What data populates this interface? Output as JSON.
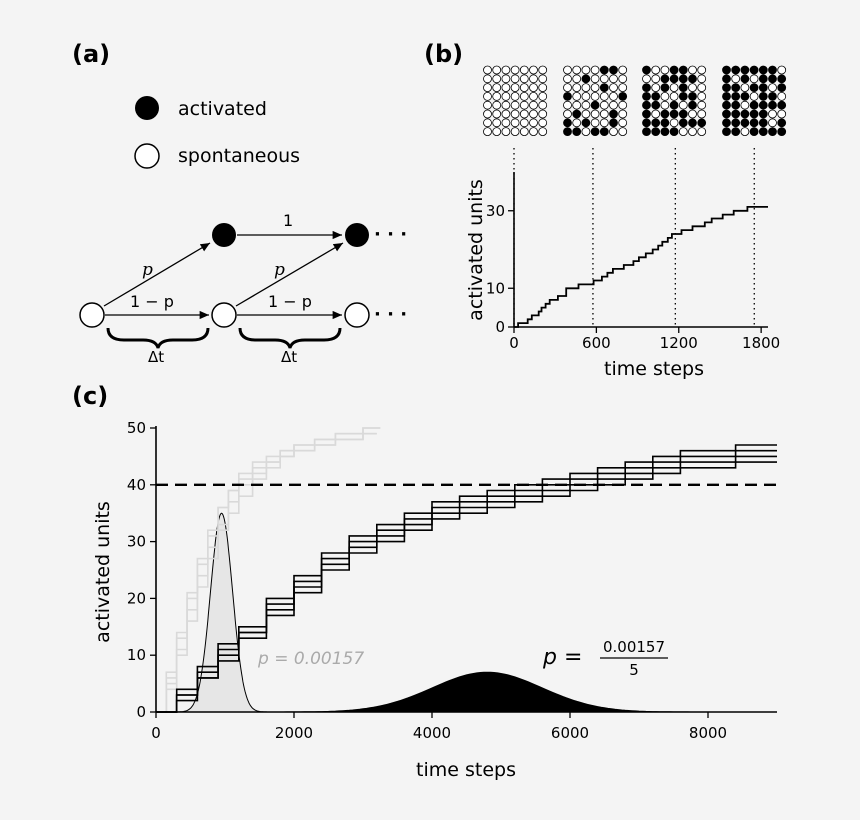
{
  "figure": {
    "panel_labels": [
      "(a)",
      "(b)",
      "(c)"
    ]
  },
  "panel_a": {
    "legend": {
      "activated": "activated",
      "spontaneous": "spontaneous"
    },
    "labels": {
      "p1": "p",
      "p2": "p",
      "one_minus_p1": "1 − p",
      "one_minus_p2": "1 − p",
      "one": "1",
      "dt1": "Δt",
      "dt2": "Δt",
      "dots1": "· · ·",
      "dots2": "· · ·"
    }
  },
  "chart_data": [
    {
      "id": "b",
      "type": "line",
      "xlabel": "time steps",
      "ylabel": "activated units",
      "xlim": [
        0,
        1850
      ],
      "ylim": [
        0,
        40
      ],
      "xticks": [
        0,
        600,
        1200,
        1800
      ],
      "yticks": [
        0,
        10,
        30
      ],
      "snapshot_times": [
        0,
        575,
        1175,
        1750
      ],
      "snapshot_grids": [
        [
          "0000000",
          "0000000",
          "0000000",
          "0000000",
          "0000000",
          "0000000",
          "0000000",
          "0000000"
        ],
        [
          "0000110",
          "0010000",
          "0000100",
          "1000001",
          "0001000",
          "0100010",
          "1010010",
          "1101100"
        ],
        [
          "1001100",
          "0011110",
          "1010100",
          "1100110",
          "1101010",
          "1011100",
          "1110111",
          "1111000"
        ],
        [
          "1111110",
          "1010111",
          "1101101",
          "1110110",
          "1101111",
          "1111100",
          "1111101",
          "1101111"
        ]
      ],
      "series": [
        {
          "name": "run",
          "x": [
            0,
            30,
            60,
            100,
            130,
            160,
            180,
            200,
            230,
            260,
            290,
            320,
            350,
            380,
            430,
            470,
            520,
            540,
            580,
            600,
            640,
            680,
            720,
            760,
            800,
            830,
            870,
            910,
            960,
            1010,
            1050,
            1080,
            1120,
            1150,
            1180,
            1220,
            1260,
            1300,
            1350,
            1390,
            1440,
            1480,
            1520,
            1560,
            1600,
            1640,
            1700,
            1850
          ],
          "y": [
            0,
            1,
            1,
            2,
            3,
            3,
            4,
            5,
            6,
            7,
            7,
            8,
            8,
            10,
            10,
            11,
            11,
            11,
            12,
            12,
            13,
            14,
            15,
            15,
            16,
            16,
            17,
            18,
            19,
            20,
            21,
            22,
            23,
            24,
            24,
            25,
            25,
            26,
            26,
            27,
            28,
            28,
            29,
            29,
            30,
            30,
            31,
            31
          ]
        }
      ]
    },
    {
      "id": "c",
      "type": "line",
      "xlabel": "time steps",
      "ylabel": "activated units",
      "xlim": [
        0,
        9000
      ],
      "ylim": [
        0,
        50
      ],
      "xticks": [
        0,
        2000,
        4000,
        6000,
        8000
      ],
      "yticks": [
        0,
        10,
        20,
        30,
        40,
        50
      ],
      "threshold": 40,
      "annotations": {
        "p_fast": "p = 0.00157",
        "p_slow_lhs": "p =",
        "p_slow_num": "0.00157",
        "p_slow_den": "5"
      },
      "distributions": [
        {
          "name": "fast",
          "type": "gaussian",
          "mean": 950,
          "sd": 160,
          "peak": 35,
          "fill": "#e6e6e6"
        },
        {
          "name": "slow",
          "type": "gaussian",
          "mean": 4800,
          "sd": 800,
          "peak": 7,
          "fill": "#000000"
        }
      ],
      "series": [
        {
          "name": "fast-1",
          "color": "#d9d9d9",
          "x": [
            0,
            150,
            300,
            450,
            600,
            750,
            900,
            1050,
            1200,
            1400,
            1600,
            1800,
            2000,
            2300,
            2600,
            3000,
            3200
          ],
          "y": [
            0,
            6,
            13,
            20,
            26,
            31,
            36,
            39,
            41,
            43,
            44,
            45,
            46,
            47,
            48,
            49,
            49
          ]
        },
        {
          "name": "fast-2",
          "color": "#d9d9d9",
          "x": [
            0,
            150,
            300,
            450,
            600,
            750,
            900,
            1050,
            1200,
            1400,
            1600,
            1800,
            2000,
            2300,
            2600,
            3000,
            3250
          ],
          "y": [
            0,
            5,
            11,
            18,
            24,
            29,
            33,
            37,
            40,
            42,
            44,
            46,
            47,
            48,
            49,
            50,
            50
          ]
        },
        {
          "name": "fast-3",
          "color": "#d9d9d9",
          "x": [
            0,
            150,
            300,
            450,
            600,
            750,
            900,
            1050,
            1200,
            1400,
            1600,
            1800,
            2000,
            2300,
            2600,
            3000,
            3200
          ],
          "y": [
            0,
            4,
            10,
            16,
            22,
            27,
            32,
            35,
            38,
            41,
            43,
            45,
            46,
            47,
            48,
            49,
            49
          ]
        },
        {
          "name": "fast-4",
          "color": "#d9d9d9",
          "x": [
            0,
            150,
            300,
            450,
            600,
            750,
            900,
            1050,
            1200,
            1400,
            1600,
            1800,
            2000,
            2300,
            2600,
            3000,
            3250
          ],
          "y": [
            0,
            7,
            14,
            21,
            27,
            32,
            36,
            39,
            42,
            44,
            45,
            46,
            47,
            48,
            49,
            50,
            50
          ]
        },
        {
          "name": "slow-1",
          "color": "#000000",
          "x": [
            0,
            300,
            600,
            900,
            1200,
            1600,
            2000,
            2400,
            2800,
            3200,
            3600,
            4000,
            4400,
            4800,
            5200,
            5600,
            6000,
            6400,
            6800,
            7200,
            7600,
            8000,
            8400,
            9000
          ],
          "y": [
            0,
            4,
            8,
            12,
            15,
            20,
            24,
            28,
            31,
            33,
            35,
            37,
            38,
            39,
            40,
            41,
            42,
            43,
            44,
            45,
            46,
            46,
            47,
            47
          ]
        },
        {
          "name": "slow-2",
          "color": "#000000",
          "x": [
            0,
            300,
            600,
            900,
            1200,
            1600,
            2000,
            2400,
            2800,
            3200,
            3600,
            4000,
            4400,
            4800,
            5200,
            5600,
            6000,
            6400,
            6800,
            7200,
            7600,
            8000,
            8400,
            9000
          ],
          "y": [
            0,
            3,
            7,
            11,
            14,
            19,
            23,
            27,
            30,
            32,
            34,
            36,
            37,
            38,
            39,
            40,
            41,
            42,
            43,
            44,
            45,
            45,
            46,
            46
          ]
        },
        {
          "name": "slow-3",
          "color": "#000000",
          "x": [
            0,
            300,
            600,
            900,
            1200,
            1600,
            2000,
            2400,
            2800,
            3200,
            3600,
            4000,
            4400,
            4800,
            5200,
            5600,
            6000,
            6400,
            6800,
            7200,
            7600,
            8000,
            8400,
            9000
          ],
          "y": [
            0,
            2,
            6,
            10,
            14,
            18,
            22,
            26,
            29,
            31,
            33,
            35,
            36,
            37,
            38,
            39,
            40,
            41,
            42,
            43,
            44,
            44,
            45,
            45
          ]
        },
        {
          "name": "slow-4",
          "color": "#000000",
          "x": [
            0,
            300,
            600,
            900,
            1200,
            1600,
            2000,
            2400,
            2800,
            3200,
            3600,
            4000,
            4400,
            4800,
            5200,
            5600,
            6000,
            6400,
            6800,
            7200,
            7600,
            8000,
            8400,
            9000
          ],
          "y": [
            0,
            3,
            6,
            9,
            13,
            17,
            21,
            25,
            28,
            30,
            32,
            34,
            35,
            36,
            37,
            38,
            39,
            40,
            41,
            42,
            43,
            43,
            44,
            44
          ]
        }
      ]
    }
  ]
}
